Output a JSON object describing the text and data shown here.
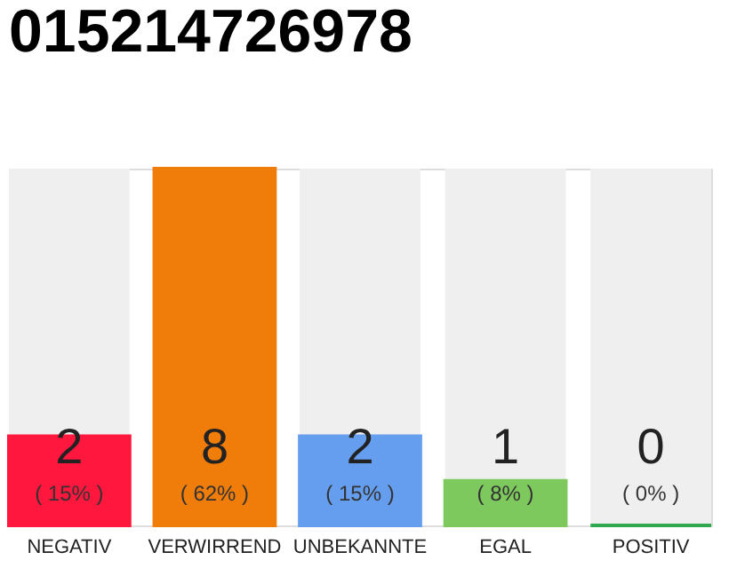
{
  "chart_data": {
    "type": "bar",
    "title": "015214726978",
    "categories": [
      "NEGATIV",
      "VERWIRREND",
      "UNBEKANNTE",
      "EGAL",
      "POSITIV"
    ],
    "values": [
      2,
      8,
      2,
      1,
      0
    ],
    "colors": [
      "#ff173d",
      "#f07d0a",
      "#659eee",
      "#7dc95e",
      "#2fa84f"
    ],
    "data_labels": true,
    "annotations": [
      "( 15% )",
      "( 62% )",
      "( 15% )",
      "( 8% )",
      "( 0% )"
    ]
  }
}
